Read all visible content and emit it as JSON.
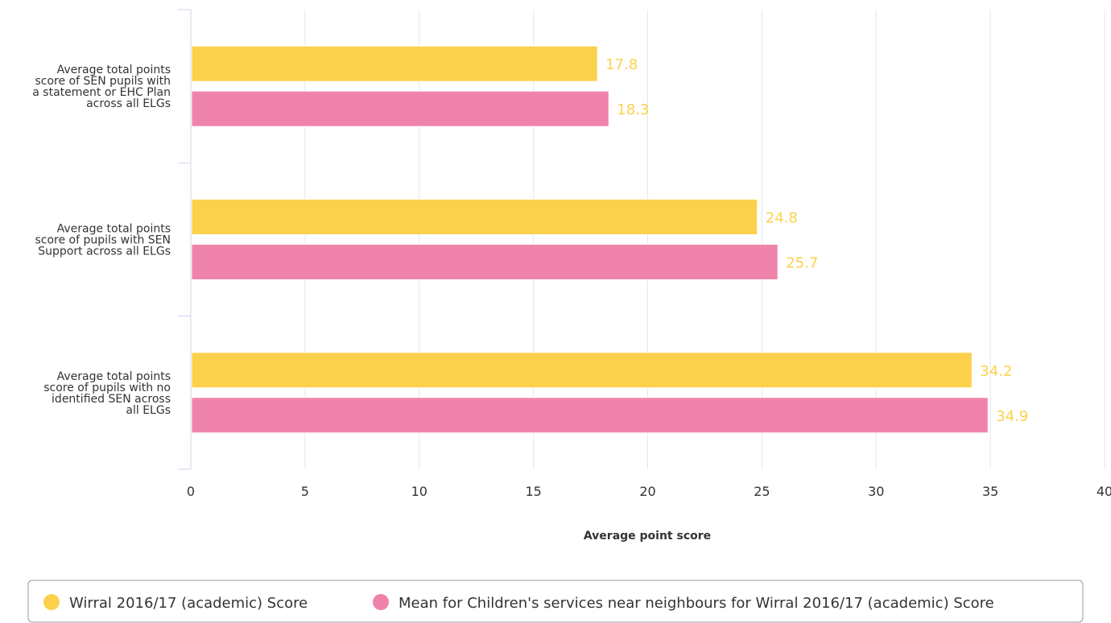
{
  "chart_data": {
    "type": "bar",
    "orientation": "horizontal",
    "categories": [
      [
        "Average total points",
        "score of SEN pupils with",
        "a statement or EHC Plan",
        "across all ELGs"
      ],
      [
        "Average total points",
        "score of pupils with SEN",
        "Support across all ELGs"
      ],
      [
        "Average total points",
        "score of pupils with no",
        "identified SEN across",
        "all ELGs"
      ]
    ],
    "series": [
      {
        "name": "Wirral 2016/17 (academic) Score",
        "values": [
          17.8,
          24.8,
          34.2
        ],
        "color": "#fbd14b"
      },
      {
        "name": "Mean for Children's services near neighbours for Wirral 2016/17 (academic) Score",
        "values": [
          18.3,
          25.7,
          34.9
        ],
        "color": "#ef83ab"
      }
    ],
    "data_label_color": "#fbd14b",
    "xlabel": "Average point score",
    "xlim": [
      0,
      40
    ],
    "xticks": [
      0,
      5,
      10,
      15,
      20,
      25,
      30,
      35,
      40
    ],
    "grid": true,
    "legend": "bottom"
  }
}
